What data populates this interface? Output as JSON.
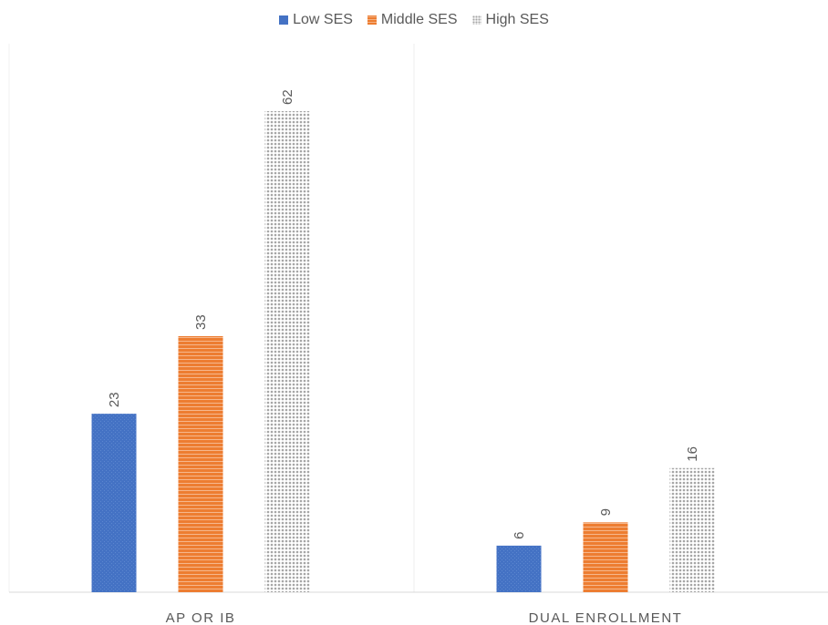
{
  "chart_data": {
    "type": "bar",
    "categories": [
      "AP OR IB",
      "DUAL ENROLLMENT"
    ],
    "series": [
      {
        "name": "Low SES",
        "values": [
          23,
          6
        ],
        "color": "#4472c4",
        "pattern": "solid"
      },
      {
        "name": "Middle SES",
        "values": [
          33,
          9
        ],
        "color": "#ed7d31",
        "pattern": "horizontal-stripes"
      },
      {
        "name": "High SES",
        "values": [
          62,
          16
        ],
        "color": "#a6a6a6",
        "pattern": "dots"
      }
    ],
    "ylim": [
      0,
      62
    ],
    "data_labels": true,
    "legend_position": "top-center",
    "grid": false
  }
}
